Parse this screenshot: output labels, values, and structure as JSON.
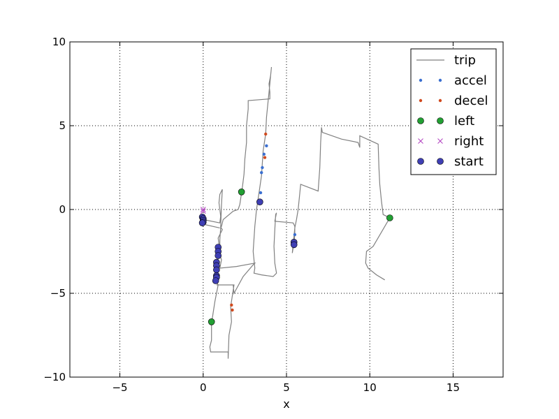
{
  "chart_data": {
    "type": "line",
    "title": "",
    "xlabel": "x",
    "ylabel": "",
    "xlim": [
      -8,
      18
    ],
    "ylim": [
      -10,
      10
    ],
    "xticks": [
      -5,
      0,
      5,
      10,
      15
    ],
    "yticks": [
      -10,
      -5,
      0,
      5,
      10
    ],
    "xtick_labels": [
      "−5",
      "0",
      "5",
      "10",
      "15"
    ],
    "ytick_labels": [
      "−10",
      "−5",
      "0",
      "5",
      "10"
    ],
    "grid": true,
    "legend_position": "top-right",
    "legend": [
      {
        "label": "trip",
        "marker": "line",
        "color": "#808080"
      },
      {
        "label": "accel",
        "marker": "dot",
        "color": "#3a6fd0"
      },
      {
        "label": "decel",
        "marker": "dot",
        "color": "#d04a1f"
      },
      {
        "label": "left",
        "marker": "circle",
        "color": "#22a033"
      },
      {
        "label": "right",
        "marker": "x",
        "color": "#b040c0"
      },
      {
        "label": "start",
        "marker": "circle",
        "color": "#3f3fb4"
      }
    ],
    "trip": [
      [
        [
          0.0,
          -0.3
        ],
        [
          0.0,
          -0.6
        ],
        [
          1.0,
          -0.8
        ],
        [
          1.05,
          -0.4
        ],
        [
          0.95,
          0.4
        ],
        [
          1.0,
          0.9
        ],
        [
          1.15,
          1.2
        ],
        [
          1.1,
          0.3
        ],
        [
          1.05,
          -1.05
        ],
        [
          1.15,
          -1.2
        ],
        [
          0.9,
          -1.7
        ],
        [
          1.0,
          -2.5
        ],
        [
          0.8,
          -3.4
        ],
        [
          0.75,
          -4.2
        ],
        [
          0.9,
          -4.5
        ],
        [
          0.7,
          -5.5
        ],
        [
          0.5,
          -6.8
        ],
        [
          0.5,
          -7.8
        ],
        [
          0.4,
          -8.2
        ],
        [
          0.45,
          -8.5
        ],
        [
          1.5,
          -8.5
        ],
        [
          1.5,
          -8.9
        ],
        [
          1.55,
          -7.5
        ],
        [
          1.7,
          -6.7
        ],
        [
          1.65,
          -5.8
        ],
        [
          1.85,
          -4.5
        ],
        [
          0.8,
          -4.5
        ],
        [
          1.8,
          -4.5
        ],
        [
          1.85,
          -5.0
        ],
        [
          2.4,
          -4.0
        ],
        [
          3.0,
          -3.3
        ],
        [
          3.1,
          -3.2
        ],
        [
          2.0,
          -3.4
        ],
        [
          1.0,
          -3.5
        ],
        [
          1.1,
          -3.0
        ],
        [
          1.0,
          -2.7
        ],
        [
          1.0,
          -2.3
        ],
        [
          1.0,
          -1.8
        ],
        [
          1.05,
          -1.1
        ],
        [
          1.1,
          -1.0
        ],
        [
          1.2,
          -0.6
        ],
        [
          1.8,
          -0.1
        ],
        [
          2.1,
          0.0
        ],
        [
          2.2,
          0.3
        ],
        [
          2.35,
          1.3
        ],
        [
          2.45,
          2.1
        ],
        [
          2.5,
          3.0
        ],
        [
          2.6,
          4.0
        ],
        [
          2.6,
          5.0
        ],
        [
          2.7,
          6.0
        ],
        [
          2.7,
          6.5
        ],
        [
          4.0,
          6.6
        ],
        [
          4.0,
          7.0
        ],
        [
          3.95,
          7.5
        ],
        [
          4.05,
          8.0
        ],
        [
          4.1,
          8.5
        ],
        [
          4.05,
          8.0
        ],
        [
          4.0,
          7.5
        ],
        [
          3.9,
          6.5
        ],
        [
          3.8,
          5.5
        ],
        [
          3.75,
          4.5
        ],
        [
          3.6,
          3.5
        ],
        [
          3.5,
          2.0
        ],
        [
          3.35,
          1.0
        ],
        [
          3.2,
          0.0
        ],
        [
          3.1,
          -1.0
        ],
        [
          3.0,
          -2.5
        ],
        [
          3.1,
          -3.5
        ],
        [
          3.05,
          -3.8
        ],
        [
          3.5,
          -3.9
        ],
        [
          4.2,
          -4.0
        ],
        [
          4.4,
          -3.8
        ],
        [
          4.3,
          -3.2
        ],
        [
          4.25,
          -2.2
        ],
        [
          4.3,
          -1.2
        ],
        [
          4.35,
          -0.3
        ],
        [
          4.4,
          -0.2
        ],
        [
          4.3,
          -0.7
        ],
        [
          5.4,
          -0.8
        ],
        [
          5.5,
          -1.0
        ],
        [
          5.5,
          -1.5
        ],
        [
          5.45,
          -2.0
        ],
        [
          5.35,
          -2.6
        ],
        [
          5.45,
          -1.6
        ],
        [
          5.5,
          -1.1
        ],
        [
          5.6,
          -0.6
        ],
        [
          5.7,
          0.0
        ],
        [
          5.8,
          1.0
        ],
        [
          5.85,
          1.5
        ],
        [
          6.9,
          1.1
        ],
        [
          7.0,
          2.5
        ],
        [
          7.05,
          4.0
        ],
        [
          7.1,
          4.9
        ],
        [
          7.15,
          4.6
        ],
        [
          8.3,
          4.2
        ],
        [
          9.3,
          4.0
        ],
        [
          9.4,
          3.7
        ],
        [
          9.4,
          4.4
        ],
        [
          10.5,
          3.9
        ],
        [
          10.55,
          2.5
        ],
        [
          10.6,
          1.5
        ],
        [
          10.7,
          0.5
        ],
        [
          10.8,
          -0.3
        ],
        [
          11.2,
          -0.5
        ],
        [
          10.2,
          -2.2
        ],
        [
          9.8,
          -2.5
        ],
        [
          9.75,
          -3.2
        ],
        [
          9.9,
          -3.5
        ],
        [
          10.4,
          -3.9
        ],
        [
          10.9,
          -4.2
        ]
      ],
      [
        [
          0.0,
          -0.8
        ],
        [
          0.1,
          -0.9
        ],
        [
          1.0,
          -1.1
        ]
      ]
    ],
    "accel": [
      [
        3.45,
        1.0
      ],
      [
        3.5,
        2.2
      ],
      [
        3.55,
        2.5
      ],
      [
        3.65,
        3.3
      ],
      [
        3.8,
        3.8
      ],
      [
        5.5,
        -1.5
      ]
    ],
    "decel": [
      [
        3.7,
        3.1
      ],
      [
        3.75,
        4.5
      ],
      [
        1.7,
        -5.7
      ],
      [
        1.75,
        -6.0
      ]
    ],
    "left": [
      [
        2.3,
        1.05
      ],
      [
        11.2,
        -0.5
      ],
      [
        0.5,
        -6.7
      ]
    ],
    "right": [
      [
        0.0,
        0.0
      ],
      [
        0.0,
        -0.1
      ]
    ],
    "start": [
      [
        -0.05,
        -0.45
      ],
      [
        0.0,
        -0.55
      ],
      [
        0.0,
        -0.65
      ],
      [
        0.0,
        -0.75
      ],
      [
        -0.05,
        -0.8
      ],
      [
        0.9,
        -2.25
      ],
      [
        0.9,
        -2.5
      ],
      [
        0.9,
        -2.75
      ],
      [
        0.8,
        -3.15
      ],
      [
        0.8,
        -3.35
      ],
      [
        0.8,
        -3.6
      ],
      [
        0.8,
        -3.95
      ],
      [
        0.8,
        -4.05
      ],
      [
        0.75,
        -4.25
      ],
      [
        3.4,
        0.45
      ],
      [
        5.45,
        -1.95
      ],
      [
        5.45,
        -2.1
      ]
    ]
  }
}
